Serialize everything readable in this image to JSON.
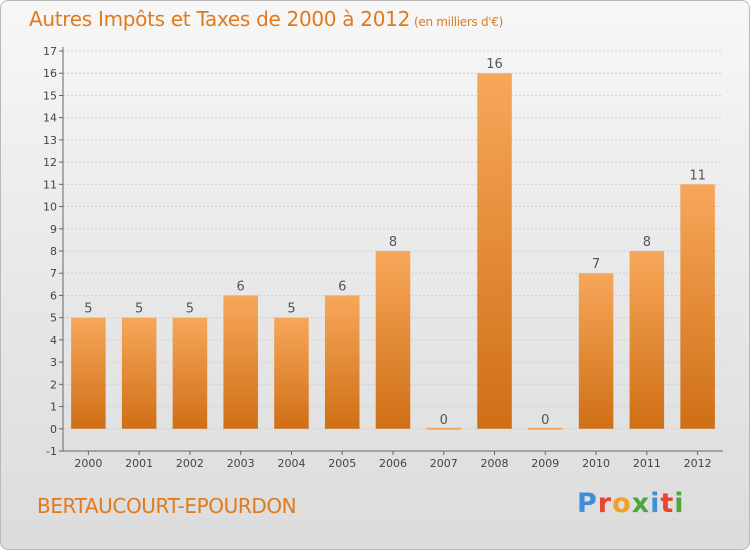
{
  "title": {
    "main": "Autres Impôts et Taxes de 2000 à 2012",
    "unit": "(en milliers d'€)"
  },
  "place_name": "BERTAUCOURT-EPOURDON",
  "logo": {
    "letters": [
      "P",
      "r",
      "o",
      "x",
      "i",
      "t",
      "i"
    ],
    "colors": [
      "#3f8fd8",
      "#e8452c",
      "#f0a024",
      "#4aa83a",
      "#3f8fd8",
      "#e8452c",
      "#4aa83a"
    ]
  },
  "colors": {
    "bar_top": "#f7a75a",
    "bar_bottom": "#cf6f16",
    "accent": "#e07a1c"
  },
  "chart_data": {
    "type": "bar",
    "categories": [
      "2000",
      "2001",
      "2002",
      "2003",
      "2004",
      "2005",
      "2006",
      "2007",
      "2008",
      "2009",
      "2010",
      "2011",
      "2012"
    ],
    "values": [
      5,
      5,
      5,
      6,
      5,
      6,
      8,
      0,
      16,
      0,
      7,
      8,
      11
    ],
    "value_labels": [
      "5",
      "5",
      "5",
      "6",
      "5",
      "6",
      "8",
      "0",
      "16",
      "0",
      "7",
      "8",
      "11"
    ],
    "y_ticks": [
      "-1",
      "0",
      "1",
      "2",
      "3",
      "4",
      "5",
      "6",
      "7",
      "8",
      "9",
      "10",
      "11",
      "12",
      "13",
      "14",
      "15",
      "16",
      "17"
    ],
    "title": "Autres Impôts et Taxes de 2000 à 2012",
    "ylim": [
      -1,
      17
    ],
    "grid": true,
    "legend": "none"
  }
}
